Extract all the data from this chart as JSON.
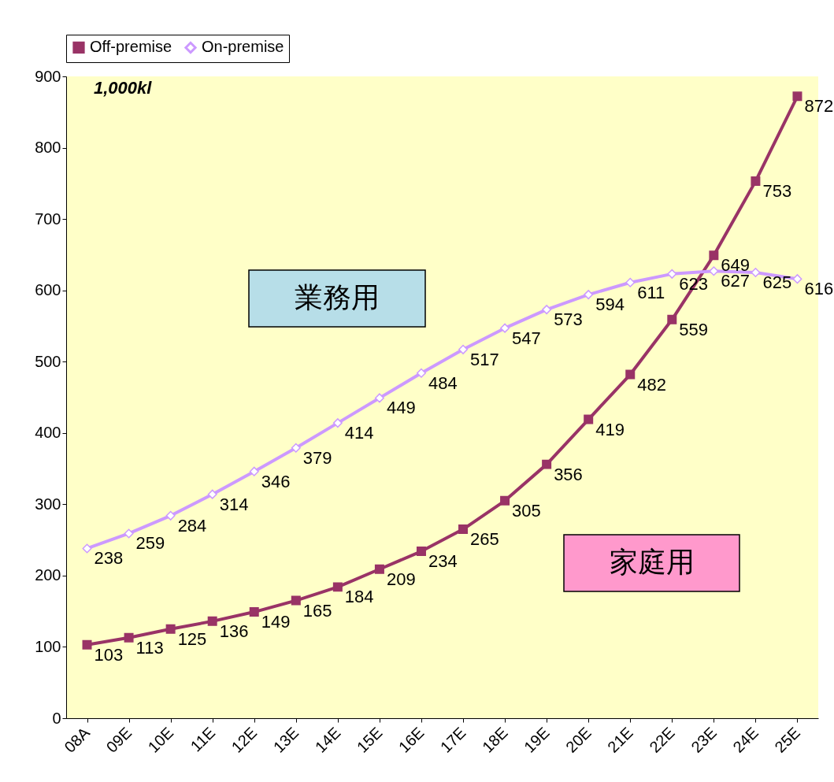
{
  "chart_data": {
    "type": "line",
    "categories": [
      "08A",
      "09E",
      "10E",
      "11E",
      "12E",
      "13E",
      "14E",
      "15E",
      "16E",
      "17E",
      "18E",
      "19E",
      "20E",
      "21E",
      "22E",
      "23E",
      "24E",
      "25E"
    ],
    "series": [
      {
        "name": "Off-premise",
        "color": "#993366",
        "marker": "square",
        "values": [
          103,
          113,
          125,
          136,
          149,
          165,
          184,
          209,
          234,
          265,
          305,
          356,
          419,
          482,
          559,
          649,
          753,
          872
        ]
      },
      {
        "name": "On-premise",
        "color": "#cc99ff",
        "marker": "diamond",
        "values": [
          238,
          259,
          284,
          314,
          346,
          379,
          414,
          449,
          484,
          517,
          547,
          573,
          594,
          611,
          623,
          627,
          625,
          616
        ]
      }
    ],
    "ylim": [
      0,
      900
    ],
    "yticks": [
      0,
      100,
      200,
      300,
      400,
      500,
      600,
      700,
      800,
      900
    ],
    "grid": false,
    "legend": "top",
    "data_labels": true,
    "annotations": [
      "1,000kl",
      "業務用",
      "家庭用"
    ]
  }
}
